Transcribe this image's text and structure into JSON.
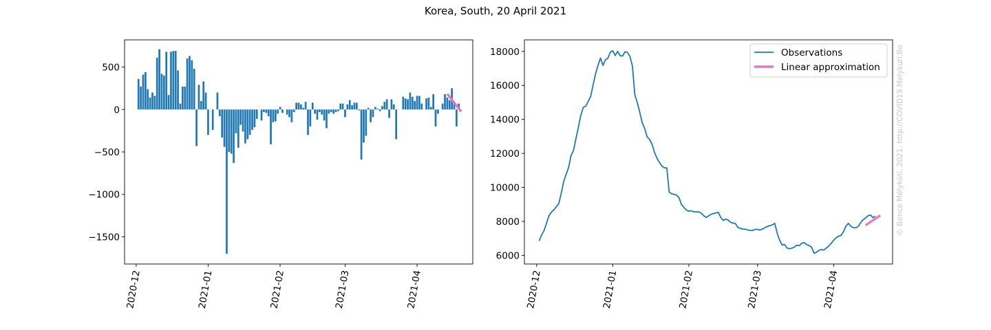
{
  "suptitle": "Korea, South, 20 April 2021",
  "watermark": "© Bence Mélykúti, 2021. http://COVID19.Melykuti.Be",
  "colors": {
    "bars": "#1f77b4",
    "observations": "#1f77b4",
    "linear": "#e377c2",
    "watermark": "#c8c8c8"
  },
  "chart_data": [
    {
      "type": "bar",
      "title": "",
      "xlabel": "",
      "ylabel": "",
      "date_start": "2020-12-02",
      "ylim": [
        -1820,
        820
      ],
      "yticks": [
        500,
        0,
        -500,
        -1000,
        -1500
      ],
      "ytick_labels": [
        "500",
        "0",
        "−500",
        "−1000",
        "−1500"
      ],
      "xticks": [
        "2020-12-01",
        "2021-01-01",
        "2021-02-01",
        "2021-03-01",
        "2021-04-01"
      ],
      "xtick_labels": [
        "2020-12",
        "2021-01",
        "2021-02",
        "2021-03",
        "2021-04"
      ],
      "xlim": [
        "2020-11-26",
        "2021-04-25"
      ],
      "values": [
        360,
        270,
        410,
        440,
        240,
        140,
        200,
        160,
        610,
        710,
        420,
        400,
        680,
        170,
        680,
        690,
        690,
        460,
        70,
        270,
        270,
        600,
        630,
        580,
        480,
        -430,
        290,
        100,
        330,
        200,
        -300,
        0,
        -240,
        0,
        200,
        -80,
        -330,
        -440,
        -1700,
        -500,
        -520,
        -630,
        -280,
        -450,
        -180,
        -260,
        -400,
        -350,
        -300,
        -240,
        -210,
        -110,
        0,
        -130,
        -30,
        -40,
        -80,
        -410,
        -150,
        -140,
        -50,
        30,
        -40,
        0,
        -60,
        -90,
        -150,
        -30,
        80,
        80,
        60,
        20,
        90,
        -300,
        -200,
        80,
        -50,
        -120,
        -30,
        -60,
        -130,
        -220,
        -50,
        -30,
        -50,
        -30,
        -20,
        70,
        70,
        -90,
        60,
        110,
        50,
        80,
        80,
        -10,
        -590,
        -390,
        -310,
        20,
        -150,
        -90,
        30,
        10,
        -20,
        40,
        90,
        120,
        -100,
        120,
        60,
        -350,
        0,
        0,
        150,
        130,
        120,
        200,
        150,
        100,
        160,
        160,
        70,
        0,
        130,
        140,
        30,
        180,
        -200,
        -50,
        0,
        70,
        180,
        140,
        110,
        250,
        70,
        -200,
        70
      ],
      "series": [
        {
          "name": "",
          "x": [
            "2021-04-14",
            "2021-04-20"
          ],
          "y": [
            185,
            -25
          ]
        }
      ]
    },
    {
      "type": "line",
      "title": "",
      "xlabel": "",
      "ylabel": "",
      "date_start": "2020-12-02",
      "ylim": [
        5490,
        18680
      ],
      "yticks": [
        6000,
        8000,
        10000,
        12000,
        14000,
        16000,
        18000
      ],
      "ytick_labels": [
        "6000",
        "8000",
        "10000",
        "12000",
        "14000",
        "16000",
        "18000"
      ],
      "xticks": [
        "2020-12-01",
        "2021-01-01",
        "2021-02-01",
        "2021-03-01",
        "2021-04-01"
      ],
      "xtick_labels": [
        "2020-12",
        "2021-01",
        "2021-02",
        "2021-03",
        "2021-04"
      ],
      "xlim": [
        "2020-11-26",
        "2021-04-25"
      ],
      "legend": {
        "placement": "top-right",
        "entries": [
          "Observations",
          "Linear approximation"
        ]
      },
      "series": [
        {
          "name": "Observations",
          "y": [
            6850,
            7200,
            7450,
            7890,
            8330,
            8540,
            8680,
            8860,
            9040,
            9650,
            10350,
            10760,
            11170,
            11870,
            12170,
            12860,
            13550,
            14250,
            14710,
            14780,
            15060,
            15350,
            16050,
            16680,
            17190,
            17610,
            17180,
            17510,
            17600,
            17960,
            18040,
            17760,
            18010,
            17750,
            17730,
            17980,
            17940,
            17700,
            17150,
            15440,
            14980,
            14420,
            13810,
            13460,
            12980,
            12820,
            12540,
            12060,
            11720,
            11460,
            11260,
            11150,
            11150,
            9720,
            9620,
            9590,
            9550,
            9390,
            8980,
            8820,
            8660,
            8600,
            8620,
            8560,
            8560,
            8560,
            8490,
            8340,
            8230,
            8320,
            8410,
            8460,
            8500,
            8530,
            8230,
            8060,
            8130,
            8080,
            7940,
            7900,
            7860,
            7640,
            7590,
            7550,
            7540,
            7490,
            7470,
            7460,
            7530,
            7530,
            7490,
            7550,
            7630,
            7700,
            7750,
            7790,
            7880,
            7290,
            6880,
            6610,
            6640,
            6430,
            6390,
            6420,
            6490,
            6600,
            6570,
            6710,
            6750,
            6630,
            6580,
            6480,
            6120,
            6180,
            6290,
            6340,
            6310,
            6430,
            6550,
            6710,
            6890,
            7040,
            7130,
            7170,
            7400,
            7720,
            7880,
            7710,
            7630,
            7620,
            7700,
            7920,
            8090,
            8200,
            8330,
            8370,
            8220,
            8300
          ]
        },
        {
          "name": "Linear approximation",
          "x": [
            "2021-04-14",
            "2021-04-20"
          ],
          "y": [
            7770,
            8350
          ]
        }
      ]
    }
  ]
}
